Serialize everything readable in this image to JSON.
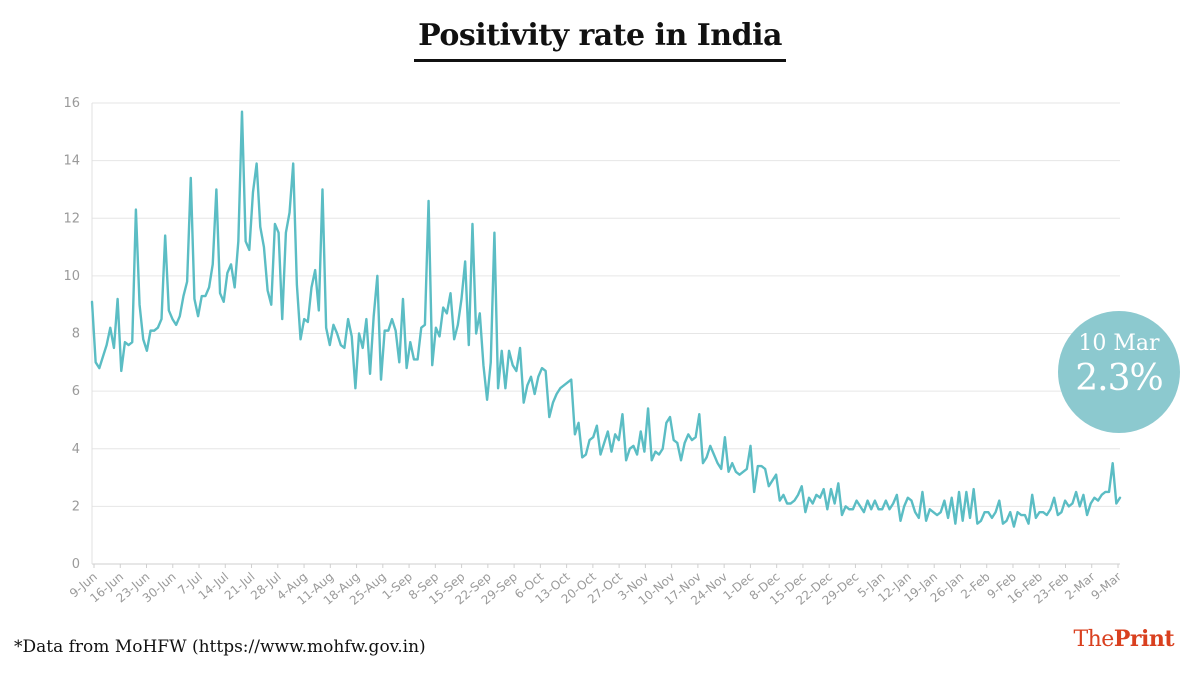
{
  "header": {
    "title": "Positivity rate in India"
  },
  "footer": {
    "source": "*Data from MoHFW (https://www.mohfw.gov.in)"
  },
  "logo": {
    "part1": "The",
    "part2": "Print"
  },
  "callout": {
    "date": "10 Mar",
    "value": "2.3%"
  },
  "colors": {
    "line": "#5bbdc4",
    "callout": "#8cc9cf",
    "brand": "#d9401f",
    "grid": "#e6e6e6",
    "tick_text": "#9a9a9a"
  },
  "chart_data": {
    "type": "line",
    "title": "Positivity rate in India",
    "xlabel": "",
    "ylabel": "",
    "ylim": [
      0,
      16
    ],
    "yticks": [
      0,
      2,
      4,
      6,
      8,
      10,
      12,
      14,
      16
    ],
    "grid": true,
    "xticks": [
      "9-Jun",
      "16-Jun",
      "23-Jun",
      "30-Jun",
      "7-Jul",
      "14-Jul",
      "21-Jul",
      "28-Jul",
      "4-Aug",
      "11-Aug",
      "18-Aug",
      "25-Aug",
      "1-Sep",
      "8-Sep",
      "15-Sep",
      "22-Sep",
      "29-Sep",
      "6-Oct",
      "13-Oct",
      "20-Oct",
      "27-Oct",
      "3-Nov",
      "10-Nov",
      "17-Nov",
      "24-Nov",
      "1-Dec",
      "8-Dec",
      "15-Dec",
      "22-Dec",
      "29-Dec",
      "5-Jan",
      "12-Jan",
      "19-Jan",
      "26-Jan",
      "2-Feb",
      "9-Feb",
      "16-Feb",
      "23-Feb",
      "2-Mar",
      "9-Mar"
    ],
    "x_start": "9-Jun",
    "x_end": "10-Mar",
    "series": [
      {
        "values": [
          9.1,
          7.0,
          6.8,
          7.2,
          7.6,
          8.2,
          7.5,
          9.2,
          6.7,
          7.7,
          7.6,
          7.7,
          12.3,
          9.0,
          7.8,
          7.4,
          8.1,
          8.1,
          8.2,
          8.5,
          11.4,
          8.8,
          8.5,
          8.3,
          8.6,
          9.3,
          9.8,
          13.4,
          9.2,
          8.6,
          9.3,
          9.3,
          9.6,
          10.4,
          13.0,
          9.4,
          9.1,
          10.1,
          10.4,
          9.6,
          11.2,
          15.7,
          11.2,
          10.9,
          12.9,
          13.9,
          11.7,
          11.0,
          9.5,
          9.0,
          11.8,
          11.5,
          8.5,
          11.5,
          12.2,
          13.9,
          9.7,
          7.8,
          8.5,
          8.4,
          9.6,
          10.2,
          8.8,
          13.0,
          8.2,
          7.6,
          8.3,
          8.0,
          7.6,
          7.5,
          8.5,
          7.9,
          6.1,
          8.0,
          7.5,
          8.5,
          6.6,
          8.6,
          10.0,
          6.4,
          8.1,
          8.1,
          8.5,
          8.1,
          7.0,
          9.2,
          6.8,
          7.7,
          7.1,
          7.1,
          8.2,
          8.3,
          12.6,
          6.9,
          8.2,
          7.9,
          8.9,
          8.7,
          9.4,
          7.8,
          8.3,
          9.2,
          10.5,
          7.6,
          11.8,
          8.0,
          8.7,
          6.9,
          5.7,
          7.0,
          11.5,
          6.1,
          7.4,
          6.1,
          7.4,
          6.9,
          6.7,
          7.5,
          5.6,
          6.2,
          6.5,
          5.9,
          6.5,
          6.8,
          6.7,
          5.1,
          5.6,
          5.9,
          6.1,
          6.2,
          6.3,
          6.4,
          4.5,
          4.9,
          3.7,
          3.8,
          4.3,
          4.4,
          4.8,
          3.8,
          4.2,
          4.6,
          3.9,
          4.5,
          4.3,
          5.2,
          3.6,
          4.0,
          4.1,
          3.8,
          4.6,
          3.9,
          5.4,
          3.6,
          3.9,
          3.8,
          4.0,
          4.9,
          5.1,
          4.3,
          4.2,
          3.6,
          4.2,
          4.5,
          4.3,
          4.4,
          5.2,
          3.5,
          3.7,
          4.1,
          3.8,
          3.5,
          3.3,
          4.4,
          3.2,
          3.5,
          3.2,
          3.1,
          3.2,
          3.3,
          4.1,
          2.5,
          3.4,
          3.4,
          3.3,
          2.7,
          2.9,
          3.1,
          2.2,
          2.4,
          2.1,
          2.1,
          2.2,
          2.4,
          2.7,
          1.8,
          2.3,
          2.1,
          2.4,
          2.3,
          2.6,
          1.9,
          2.6,
          2.1,
          2.8,
          1.7,
          2.0,
          1.9,
          1.9,
          2.2,
          2.0,
          1.8,
          2.2,
          1.9,
          2.2,
          1.9,
          1.9,
          2.2,
          1.9,
          2.1,
          2.4,
          1.5,
          2.0,
          2.3,
          2.2,
          1.8,
          1.6,
          2.5,
          1.5,
          1.9,
          1.8,
          1.7,
          1.8,
          2.2,
          1.6,
          2.3,
          1.4,
          2.5,
          1.5,
          2.5,
          1.6,
          2.6,
          1.4,
          1.5,
          1.8,
          1.8,
          1.6,
          1.8,
          2.2,
          1.4,
          1.5,
          1.8,
          1.3,
          1.8,
          1.7,
          1.7,
          1.4,
          2.4,
          1.6,
          1.8,
          1.8,
          1.7,
          1.9,
          2.3,
          1.7,
          1.8,
          2.2,
          2.0,
          2.1,
          2.5,
          2.0,
          2.4,
          1.7,
          2.1,
          2.3,
          2.2,
          2.4,
          2.5,
          2.5,
          3.5,
          2.1,
          2.3
        ]
      }
    ]
  }
}
